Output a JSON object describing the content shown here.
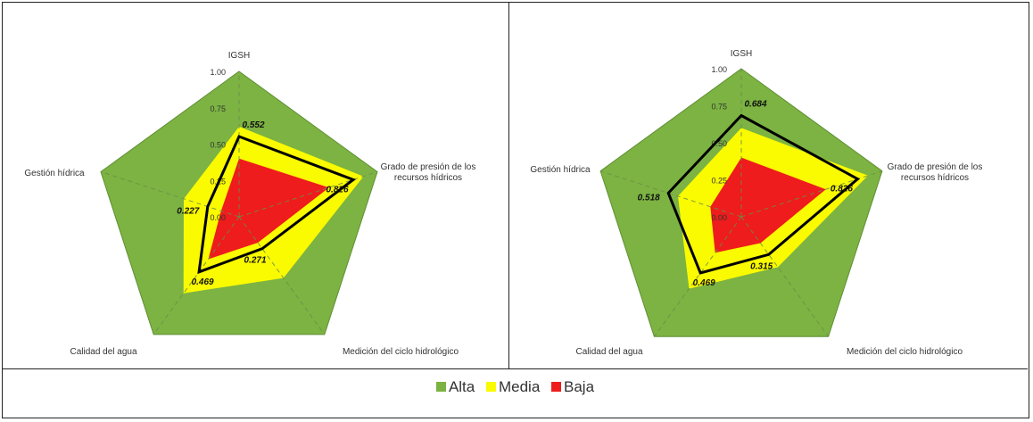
{
  "colors": {
    "alta": "#7cb342",
    "media": "#fafa00",
    "baja": "#ee1c1c",
    "outline": "#000000"
  },
  "chart_data": [
    {
      "type": "radar",
      "axes": [
        "IGSH",
        "Grado de presión de los recursos hídricos",
        "Medición del ciclo hidrológico",
        "Calidad del agua",
        "Gestión hídrica"
      ],
      "axis_label_lines": [
        [
          "IGSH"
        ],
        [
          "Grado de presión de los",
          "recursos hídricos"
        ],
        [
          "Medición del ciclo hidrológico"
        ],
        [
          "Calidad del agua"
        ],
        [
          "Gestión hídrica"
        ]
      ],
      "scale_labels": [
        "0.00",
        "0.25",
        "0.50",
        "0.75",
        "1.00"
      ],
      "ylim": [
        0,
        1
      ],
      "bands": [
        {
          "name": "Alta",
          "values": [
            1,
            1,
            1,
            1,
            1
          ]
        },
        {
          "name": "Media",
          "values": [
            0.62,
            0.9,
            0.52,
            0.65,
            0.4
          ]
        },
        {
          "name": "Baja",
          "values": [
            0.4,
            0.65,
            0.22,
            0.36,
            0.13
          ]
        }
      ],
      "series": [
        {
          "values": [
            0.552,
            0.826,
            0.271,
            0.469,
            0.227
          ],
          "labels": [
            "0.552",
            "0.826",
            "0.271",
            "0.469",
            "0.227"
          ]
        }
      ]
    },
    {
      "type": "radar",
      "axes": [
        "IGSH",
        "Grado de presión de los recursos hídricos",
        "Medición del ciclo hidrológico",
        "Calidad del agua",
        "Gestión hídrica"
      ],
      "axis_label_lines": [
        [
          "IGSH"
        ],
        [
          "Grado de presión de los",
          "recursos hídricos"
        ],
        [
          "Medición del ciclo hidrológico"
        ],
        [
          "Calidad del agua"
        ],
        [
          "Gestión hídrica"
        ]
      ],
      "scale_labels": [
        "0.00",
        "0.25",
        "0.50",
        "0.75",
        "1.00"
      ],
      "ylim": [
        0,
        1
      ],
      "bands": [
        {
          "name": "Alta",
          "values": [
            1,
            1,
            1,
            1,
            1
          ]
        },
        {
          "name": "Media",
          "values": [
            0.6,
            0.9,
            0.42,
            0.6,
            0.45
          ]
        },
        {
          "name": "Baja",
          "values": [
            0.4,
            0.6,
            0.22,
            0.3,
            0.22
          ]
        }
      ],
      "series": [
        {
          "values": [
            0.684,
            0.826,
            0.315,
            0.469,
            0.518
          ],
          "labels": [
            "0.684",
            "0.826",
            "0.315",
            "0.469",
            "0.518"
          ]
        }
      ]
    }
  ],
  "legend": [
    {
      "label": "Alta",
      "color": "#7cb342"
    },
    {
      "label": "Media",
      "color": "#fafa00"
    },
    {
      "label": "Baja",
      "color": "#ee1c1c"
    }
  ]
}
